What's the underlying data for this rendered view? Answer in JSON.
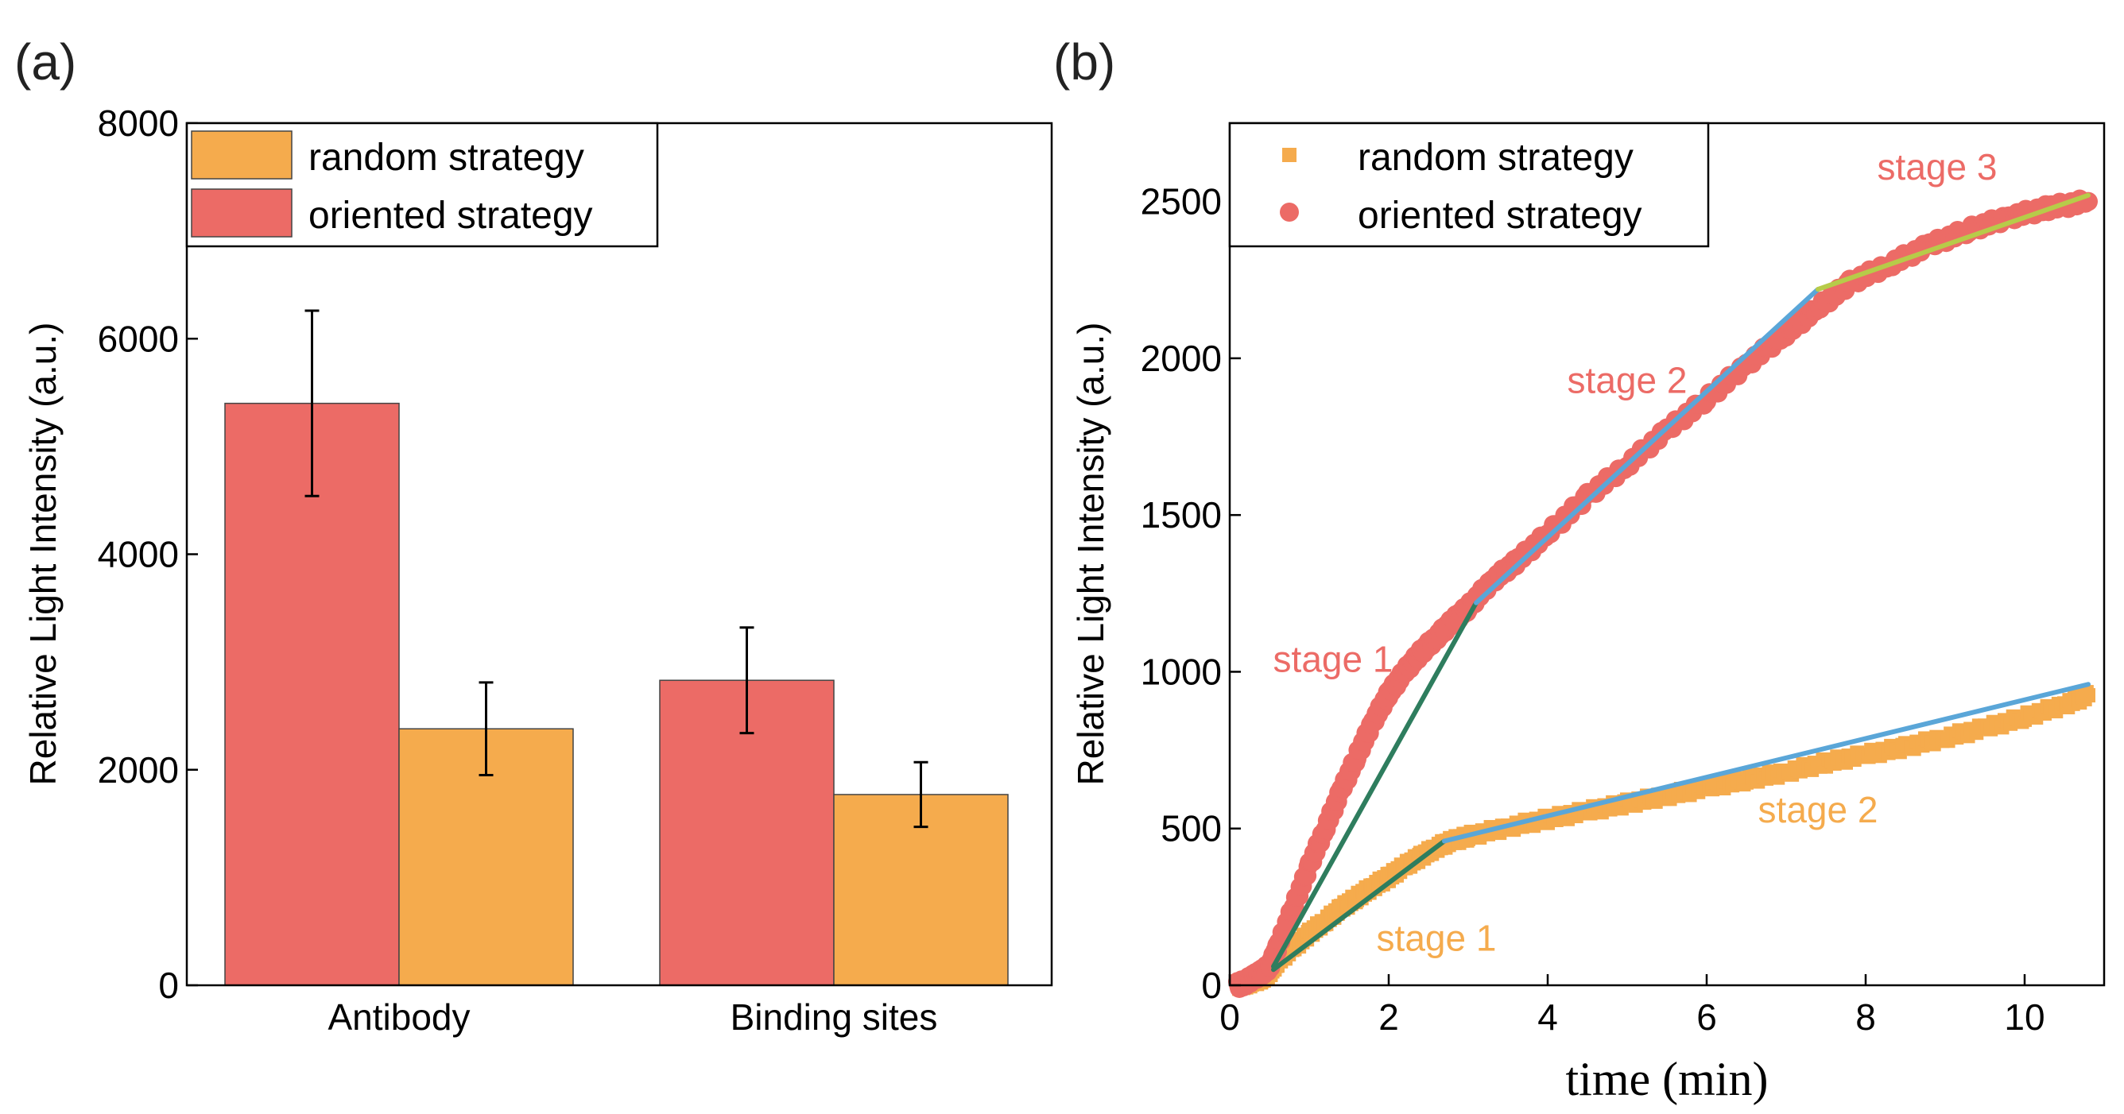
{
  "colors": {
    "random": "#F5AB4D",
    "oriented": "#EC6B66",
    "fit_dark_green": "#2E7D5E",
    "fit_blue": "#5AA6D8",
    "fit_yellow_green": "#B7CB49",
    "frame": "#000000"
  },
  "chart_data": [
    {
      "panel": "(a)",
      "type": "bar",
      "ylabel": "Relative Light Intensity (a.u.)",
      "xlabel": "",
      "ylim": [
        0,
        8000
      ],
      "yticks": [
        0,
        2000,
        4000,
        6000,
        8000
      ],
      "categories": [
        "Antibody",
        "Binding sites"
      ],
      "series": [
        {
          "name": "oriented strategy",
          "color": "#EC6B66",
          "values": [
            5400,
            2830
          ],
          "errors": [
            860,
            490
          ]
        },
        {
          "name": "random strategy",
          "color": "#F5AB4D",
          "values": [
            2380,
            1770
          ],
          "errors": [
            430,
            300
          ]
        }
      ],
      "legend": {
        "placement": "top-left",
        "entries": [
          "random strategy",
          "oriented strategy"
        ]
      }
    },
    {
      "panel": "(b)",
      "type": "scatter",
      "xlabel": "time (min)",
      "ylabel": "Relative Light Intensity (a.u.)",
      "xlim": [
        0,
        11
      ],
      "ylim": [
        0,
        2750
      ],
      "xticks": [
        0,
        2,
        4,
        6,
        8,
        10
      ],
      "yticks": [
        0,
        500,
        1000,
        1500,
        2000,
        2500
      ],
      "series": [
        {
          "name": "random strategy",
          "marker": "square",
          "color": "#F5AB4D",
          "points": [
            [
              0.1,
              0
            ],
            [
              0.2,
              5
            ],
            [
              0.3,
              12
            ],
            [
              0.4,
              22
            ],
            [
              0.5,
              40
            ],
            [
              0.6,
              75
            ],
            [
              0.8,
              120
            ],
            [
              1.0,
              165
            ],
            [
              1.2,
              205
            ],
            [
              1.4,
              245
            ],
            [
              1.6,
              280
            ],
            [
              1.8,
              315
            ],
            [
              2.0,
              345
            ],
            [
              2.2,
              380
            ],
            [
              2.4,
              410
            ],
            [
              2.6,
              440
            ],
            [
              2.8,
              460
            ],
            [
              3.0,
              475
            ],
            [
              3.5,
              505
            ],
            [
              4.0,
              530
            ],
            [
              4.5,
              555
            ],
            [
              5.0,
              580
            ],
            [
              5.5,
              605
            ],
            [
              6.0,
              630
            ],
            [
              6.5,
              655
            ],
            [
              7.0,
              680
            ],
            [
              7.5,
              710
            ],
            [
              8.0,
              735
            ],
            [
              8.5,
              760
            ],
            [
              9.0,
              790
            ],
            [
              9.5,
              820
            ],
            [
              10.0,
              855
            ],
            [
              10.5,
              895
            ],
            [
              10.8,
              925
            ]
          ]
        },
        {
          "name": "oriented strategy",
          "marker": "circle",
          "color": "#EC6B66",
          "points": [
            [
              0.1,
              0
            ],
            [
              0.2,
              10
            ],
            [
              0.3,
              25
            ],
            [
              0.4,
              40
            ],
            [
              0.5,
              60
            ],
            [
              0.6,
              120
            ],
            [
              0.8,
              250
            ],
            [
              1.0,
              380
            ],
            [
              1.2,
              500
            ],
            [
              1.4,
              620
            ],
            [
              1.6,
              730
            ],
            [
              1.8,
              840
            ],
            [
              2.0,
              930
            ],
            [
              2.2,
              1000
            ],
            [
              2.4,
              1060
            ],
            [
              2.6,
              1110
            ],
            [
              2.8,
              1160
            ],
            [
              3.0,
              1205
            ],
            [
              3.3,
              1290
            ],
            [
              3.6,
              1350
            ],
            [
              4.0,
              1440
            ],
            [
              4.5,
              1560
            ],
            [
              5.0,
              1660
            ],
            [
              5.5,
              1770
            ],
            [
              6.0,
              1870
            ],
            [
              6.5,
              1980
            ],
            [
              7.0,
              2080
            ],
            [
              7.4,
              2160
            ],
            [
              7.8,
              2240
            ],
            [
              8.3,
              2300
            ],
            [
              8.8,
              2360
            ],
            [
              9.3,
              2410
            ],
            [
              9.8,
              2450
            ],
            [
              10.3,
              2480
            ],
            [
              10.8,
              2500
            ]
          ]
        }
      ],
      "fits": [
        {
          "series": "random strategy",
          "stage": "stage 1",
          "color": "#2E7D5E",
          "x": [
            0.55,
            2.7
          ],
          "y": [
            50,
            460
          ]
        },
        {
          "series": "random strategy",
          "stage": "stage 2",
          "color": "#5AA6D8",
          "x": [
            2.7,
            10.8
          ],
          "y": [
            460,
            960
          ]
        },
        {
          "series": "oriented strategy",
          "stage": "stage 1",
          "color": "#2E7D5E",
          "x": [
            0.55,
            3.1
          ],
          "y": [
            60,
            1220
          ]
        },
        {
          "series": "oriented strategy",
          "stage": "stage 2",
          "color": "#5AA6D8",
          "x": [
            3.1,
            7.4
          ],
          "y": [
            1220,
            2220
          ]
        },
        {
          "series": "oriented strategy",
          "stage": "stage 3",
          "color": "#B7CB49",
          "x": [
            7.4,
            10.8
          ],
          "y": [
            2220,
            2520
          ]
        }
      ],
      "annotations": [
        {
          "text": "stage 1",
          "color": "#EC6B66",
          "x": 1.3,
          "y": 1000
        },
        {
          "text": "stage 2",
          "color": "#EC6B66",
          "x": 5.0,
          "y": 1890
        },
        {
          "text": "stage 3",
          "color": "#EC6B66",
          "x": 8.9,
          "y": 2570
        },
        {
          "text": "stage 1",
          "color": "#F5AB4D",
          "x": 2.6,
          "y": 110
        },
        {
          "text": "stage 2",
          "color": "#F5AB4D",
          "x": 7.4,
          "y": 520
        }
      ],
      "legend": {
        "placement": "top-left",
        "entries": [
          "random strategy",
          "oriented strategy"
        ]
      }
    }
  ]
}
